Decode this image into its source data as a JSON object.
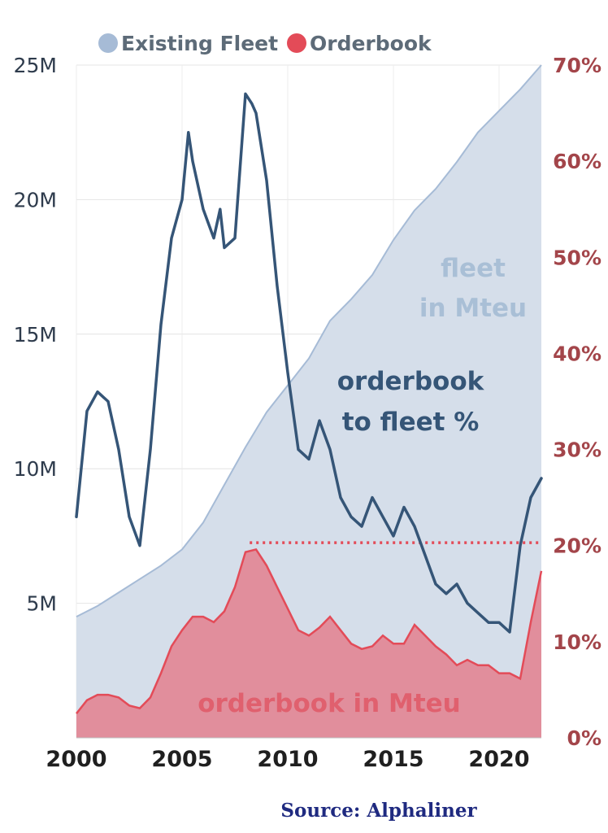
{
  "chart_data": {
    "type": "area",
    "x_range": [
      2000,
      2022
    ],
    "y_left_range": [
      0,
      25000000
    ],
    "y_right_range": [
      0,
      70
    ],
    "grid": true,
    "legend_position": "top",
    "legend": [
      {
        "label": "Existing Fleet",
        "color": "#a6bbd6"
      },
      {
        "label": "Orderbook",
        "color": "#e34b58"
      }
    ],
    "x_ticks": [
      "2000",
      "2005",
      "2010",
      "2015",
      "2020"
    ],
    "y_left_ticks": [
      "5M",
      "10M",
      "15M",
      "20M",
      "25M"
    ],
    "y_left_tick_values": [
      5000000,
      10000000,
      15000000,
      20000000,
      25000000
    ],
    "y_right_ticks": [
      "0%",
      "10%",
      "20%",
      "30%",
      "40%",
      "50%",
      "60%",
      "70%"
    ],
    "y_right_tick_values": [
      0,
      10,
      20,
      30,
      40,
      50,
      60,
      70
    ],
    "annotations": {
      "fleet_line1": "fleet",
      "fleet_line2": "in Mteu",
      "ratio_line1": "orderbook",
      "ratio_line2": "to fleet %",
      "orderbook": "orderbook in Mteu"
    },
    "reference_line": {
      "from_x": 2008.2,
      "to_x": 2022,
      "value_pct": 20.3
    },
    "series": [
      {
        "name": "Existing Fleet",
        "axis": "left",
        "color": "#a6bbd6",
        "fill": "#d5deea",
        "x": [
          2000,
          2001,
          2002,
          2003,
          2004,
          2005,
          2006,
          2007,
          2008,
          2009,
          2010,
          2011,
          2012,
          2013,
          2014,
          2015,
          2016,
          2017,
          2018,
          2019,
          2020,
          2021,
          2022
        ],
        "values": [
          4500000,
          4900000,
          5400000,
          5900000,
          6400000,
          7000000,
          8000000,
          9400000,
          10800000,
          12100000,
          13100000,
          14100000,
          15500000,
          16300000,
          17200000,
          18500000,
          19600000,
          20400000,
          21400000,
          22500000,
          23300000,
          24100000,
          25000000
        ]
      },
      {
        "name": "Orderbook",
        "axis": "left",
        "color": "#e34b58",
        "fill": "#e18e9c",
        "x": [
          2000,
          2000.5,
          2001,
          2001.5,
          2002,
          2002.5,
          2003,
          2003.5,
          2004,
          2004.5,
          2005,
          2005.5,
          2006,
          2006.5,
          2007,
          2007.5,
          2008,
          2008.5,
          2009,
          2009.5,
          2010,
          2010.5,
          2011,
          2011.5,
          2012,
          2012.5,
          2013,
          2013.5,
          2014,
          2014.5,
          2015,
          2015.5,
          2016,
          2016.5,
          2017,
          2017.5,
          2018,
          2018.5,
          2019,
          2019.5,
          2020,
          2020.5,
          2021,
          2021.5,
          2022
        ],
        "values": [
          900000,
          1400000,
          1600000,
          1600000,
          1500000,
          1200000,
          1100000,
          1500000,
          2400000,
          3400000,
          4000000,
          4500000,
          4500000,
          4300000,
          4700000,
          5600000,
          6900000,
          7000000,
          6400000,
          5600000,
          4800000,
          4000000,
          3800000,
          4100000,
          4500000,
          4000000,
          3500000,
          3300000,
          3400000,
          3800000,
          3500000,
          3500000,
          4200000,
          3800000,
          3400000,
          3100000,
          2700000,
          2900000,
          2700000,
          2700000,
          2400000,
          2400000,
          2200000,
          4300000,
          6200000
        ]
      },
      {
        "name": "Orderbook to fleet %",
        "axis": "right",
        "color": "#355577",
        "x": [
          2000,
          2000.5,
          2001,
          2001.5,
          2002,
          2002.5,
          2003,
          2003.5,
          2004,
          2004.5,
          2005,
          2005.3,
          2005.5,
          2006,
          2006.5,
          2006.8,
          2007,
          2007.5,
          2008,
          2008.3,
          2008.5,
          2009,
          2009.5,
          2010,
          2010.5,
          2011,
          2011.5,
          2012,
          2012.5,
          2013,
          2013.5,
          2014,
          2014.5,
          2015,
          2015.5,
          2016,
          2016.5,
          2017,
          2017.5,
          2018,
          2018.5,
          2019,
          2019.5,
          2020,
          2020.5,
          2021,
          2021.5,
          2022
        ],
        "values": [
          23,
          34,
          36,
          35,
          30,
          23,
          20,
          30,
          43,
          52,
          56,
          63,
          60,
          55,
          52,
          55,
          51,
          52,
          67,
          66,
          65,
          58,
          47,
          38,
          30,
          29,
          33,
          30,
          25,
          23,
          22,
          25,
          23,
          21,
          24,
          22,
          19,
          16,
          15,
          16,
          14,
          13,
          12,
          12,
          11,
          20,
          25,
          27
        ]
      }
    ],
    "source": "Source: Alphaliner"
  }
}
